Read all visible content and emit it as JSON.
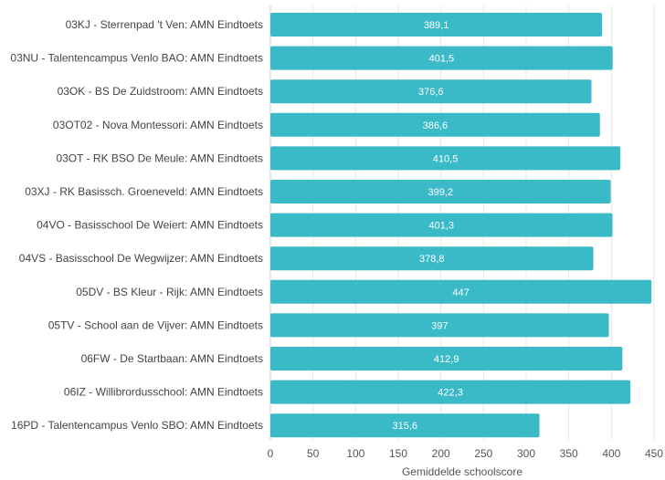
{
  "chart_data": {
    "type": "bar",
    "orientation": "horizontal",
    "categories": [
      "03KJ - Sterrenpad 't Ven: AMN Eindtoets",
      "03NU - Talentencampus Venlo BAO: AMN Eindtoets",
      "03OK - BS De Zuidstroom: AMN Eindtoets",
      "03OT02 - Nova Montessori: AMN Eindtoets",
      "03OT - RK BSO De Meule: AMN Eindtoets",
      "03XJ - RK Basissch. Groeneveld: AMN Eindtoets",
      "04VO - Basisschool De Weiert: AMN Eindtoets",
      "04VS - Basisschool De Wegwijzer: AMN Eindtoets",
      "05DV - BS Kleur - Rijk: AMN Eindtoets",
      "05TV - School aan de Vijver: AMN Eindtoets",
      "06FW - De Startbaan: AMN Eindtoets",
      "06IZ - Willibrordusschool: AMN Eindtoets",
      "16PD - Talentencampus Venlo SBO: AMN Eindtoets"
    ],
    "values": [
      389.1,
      401.5,
      376.6,
      386.6,
      410.5,
      399.2,
      401.3,
      378.8,
      447,
      397,
      412.9,
      422.3,
      315.6
    ],
    "value_labels": [
      "389,1",
      "401,5",
      "376,6",
      "386,6",
      "410,5",
      "399,2",
      "401,3",
      "378,8",
      "447",
      "397",
      "412,9",
      "422,3",
      "315,6"
    ],
    "xlabel": "Gemiddelde schoolscore",
    "ylabel": "",
    "xlim": [
      0,
      450
    ],
    "x_ticks": [
      0,
      50,
      100,
      150,
      200,
      250,
      300,
      350,
      400,
      450
    ],
    "x_tick_labels": [
      "0",
      "50",
      "100",
      "150",
      "200",
      "250",
      "300",
      "350",
      "400",
      "450"
    ],
    "grid": true,
    "colors": {
      "bar": "#3ab9c7",
      "value_text": "#ffffff",
      "grid": "#e6e6e6"
    }
  }
}
